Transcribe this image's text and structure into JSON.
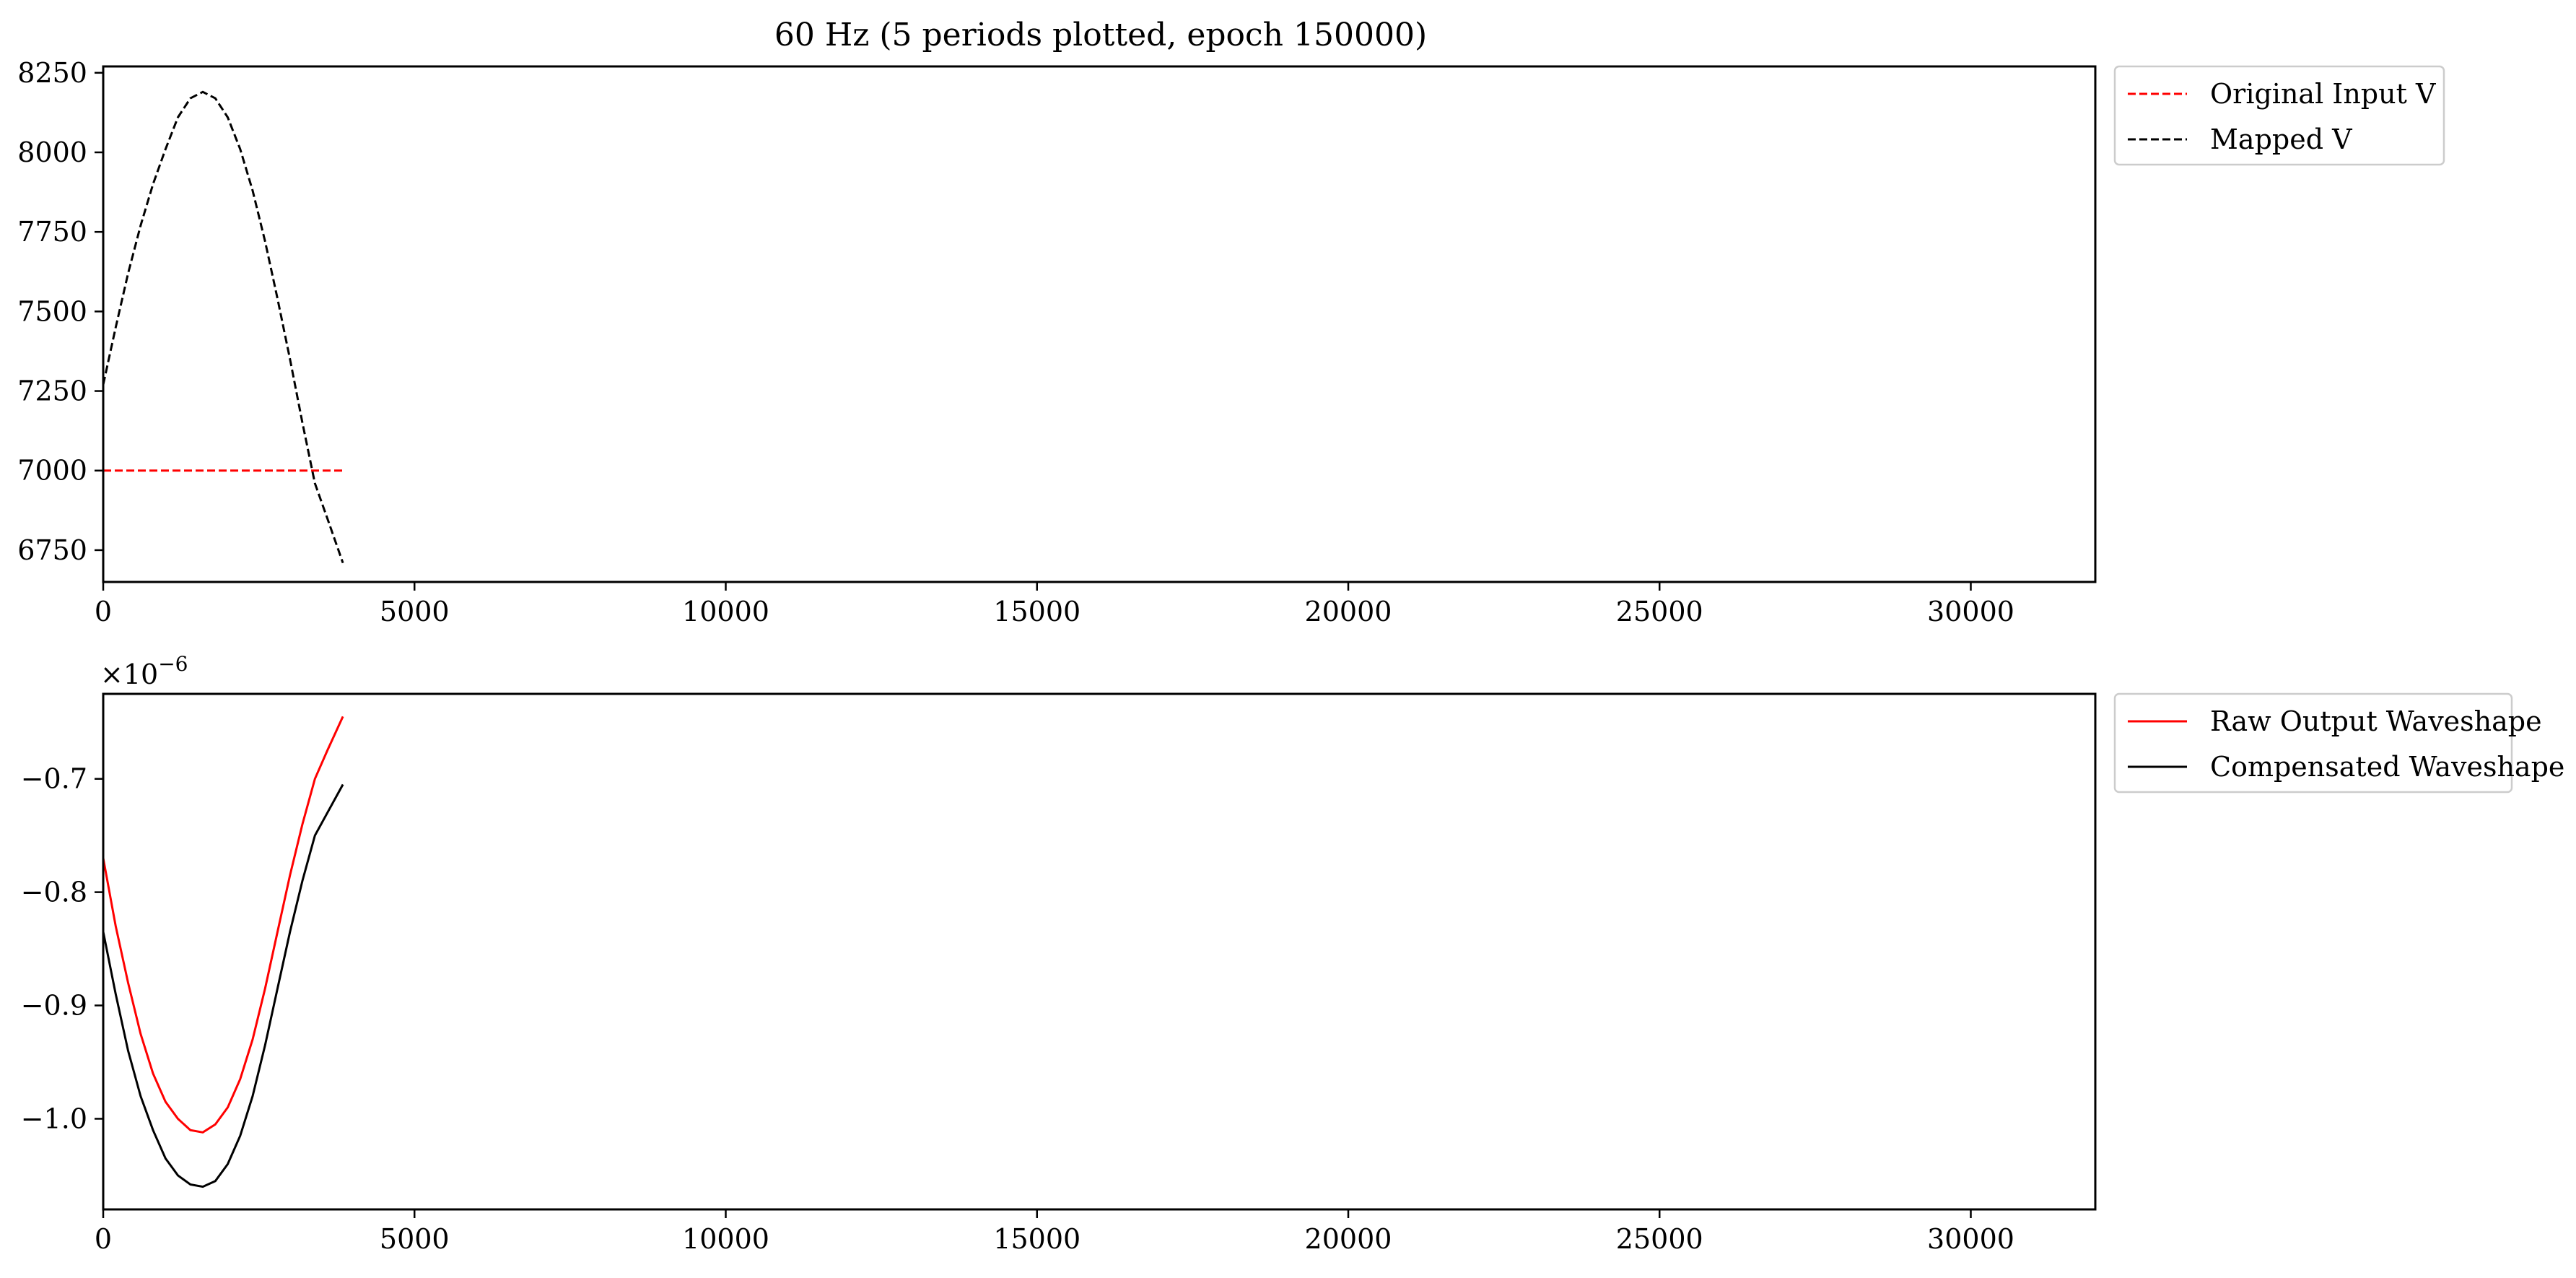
{
  "title": "60 Hz (5 periods plotted, epoch 150000)",
  "chart_data": [
    {
      "type": "line",
      "xlim": [
        0,
        32000
      ],
      "ylim": [
        6650,
        8270
      ],
      "x_ticks": [
        0,
        5000,
        10000,
        15000,
        20000,
        25000,
        30000
      ],
      "x_tick_labels": [
        "0",
        "5000",
        "10000",
        "15000",
        "20000",
        "25000",
        "30000"
      ],
      "y_ticks": [
        6750,
        7000,
        7250,
        7500,
        7750,
        8000,
        8250
      ],
      "y_tick_labels": [
        "6750",
        "7000",
        "7250",
        "7500",
        "7750",
        "8000",
        "8250"
      ],
      "legend_position": "outside-upper-right",
      "grid": false,
      "series": [
        {
          "name": "Original Input V",
          "color": "#ff0000",
          "style": "dashed",
          "x": [
            0,
            3850
          ],
          "y": [
            7000,
            7000
          ]
        },
        {
          "name": "Mapped V",
          "color": "#000000",
          "style": "dashed",
          "x": [
            0,
            200,
            400,
            600,
            800,
            1000,
            1200,
            1400,
            1600,
            1800,
            2000,
            2200,
            2400,
            2600,
            2800,
            3000,
            3200,
            3400,
            3600,
            3850
          ],
          "y": [
            7270,
            7450,
            7620,
            7770,
            7900,
            8010,
            8110,
            8170,
            8190,
            8170,
            8110,
            8010,
            7880,
            7720,
            7540,
            7350,
            7150,
            6960,
            6850,
            6710
          ]
        }
      ]
    },
    {
      "type": "line",
      "xlim": [
        0,
        32000
      ],
      "ylim": [
        -1.08,
        -0.625
      ],
      "y_scale_label": "×10^−6",
      "x_ticks": [
        0,
        5000,
        10000,
        15000,
        20000,
        25000,
        30000
      ],
      "x_tick_labels": [
        "0",
        "5000",
        "10000",
        "15000",
        "20000",
        "25000",
        "30000"
      ],
      "y_ticks": [
        -1.0,
        -0.9,
        -0.8,
        -0.7
      ],
      "y_tick_labels": [
        "−1.0",
        "−0.9",
        "−0.8",
        "−0.7"
      ],
      "legend_position": "outside-upper-right",
      "grid": false,
      "series": [
        {
          "name": "Raw Output Waveshape",
          "color": "#ff0000",
          "style": "solid",
          "x": [
            0,
            200,
            400,
            600,
            800,
            1000,
            1200,
            1400,
            1600,
            1800,
            2000,
            2200,
            2400,
            2600,
            2800,
            3000,
            3200,
            3400,
            3600,
            3850
          ],
          "y": [
            -0.77,
            -0.83,
            -0.88,
            -0.925,
            -0.96,
            -0.985,
            -1.0,
            -1.01,
            -1.012,
            -1.005,
            -0.99,
            -0.965,
            -0.93,
            -0.885,
            -0.835,
            -0.785,
            -0.74,
            -0.7,
            -0.675,
            -0.645
          ]
        },
        {
          "name": "Compensated Waveshape",
          "color": "#000000",
          "style": "solid",
          "x": [
            0,
            200,
            400,
            600,
            800,
            1000,
            1200,
            1400,
            1600,
            1800,
            2000,
            2200,
            2400,
            2600,
            2800,
            3000,
            3200,
            3400,
            3600,
            3850
          ],
          "y": [
            -0.835,
            -0.89,
            -0.94,
            -0.98,
            -1.01,
            -1.035,
            -1.05,
            -1.058,
            -1.06,
            -1.055,
            -1.04,
            -1.015,
            -0.98,
            -0.935,
            -0.885,
            -0.835,
            -0.79,
            -0.75,
            -0.73,
            -0.705
          ]
        }
      ]
    }
  ]
}
